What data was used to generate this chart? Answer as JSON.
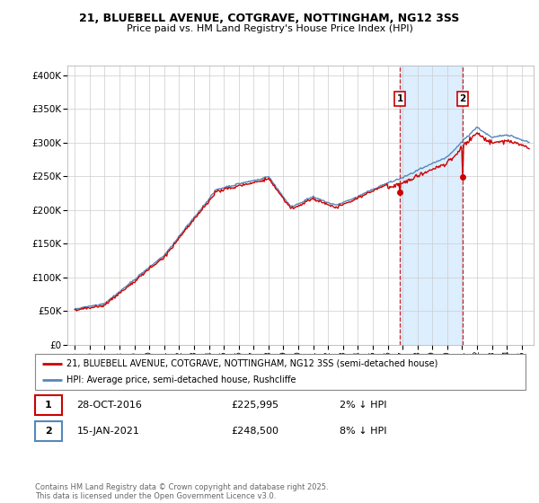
{
  "title_line1": "21, BLUEBELL AVENUE, COTGRAVE, NOTTINGHAM, NG12 3SS",
  "title_line2": "Price paid vs. HM Land Registry's House Price Index (HPI)",
  "ylabel_ticks": [
    "£0",
    "£50K",
    "£100K",
    "£150K",
    "£200K",
    "£250K",
    "£300K",
    "£350K",
    "£400K"
  ],
  "ytick_values": [
    0,
    50000,
    100000,
    150000,
    200000,
    250000,
    300000,
    350000,
    400000
  ],
  "ylim": [
    0,
    415000
  ],
  "xlim_start": 1994.5,
  "xlim_end": 2025.8,
  "xtick_years": [
    1995,
    1996,
    1997,
    1998,
    1999,
    2000,
    2001,
    2002,
    2003,
    2004,
    2005,
    2006,
    2007,
    2008,
    2009,
    2010,
    2011,
    2012,
    2013,
    2014,
    2015,
    2016,
    2017,
    2018,
    2019,
    2020,
    2021,
    2022,
    2023,
    2024,
    2025
  ],
  "hpi_color": "#5588bb",
  "price_color": "#cc0000",
  "shade_color": "#ddeeff",
  "marker1_x": 2016.82,
  "marker1_y": 225995,
  "marker2_x": 2021.04,
  "marker2_y": 248500,
  "legend_line1": "21, BLUEBELL AVENUE, COTGRAVE, NOTTINGHAM, NG12 3SS (semi-detached house)",
  "legend_line2": "HPI: Average price, semi-detached house, Rushcliffe",
  "annotation1_num": "1",
  "annotation1_date": "28-OCT-2016",
  "annotation1_price": "£225,995",
  "annotation1_hpi": "2% ↓ HPI",
  "annotation2_num": "2",
  "annotation2_date": "15-JAN-2021",
  "annotation2_price": "£248,500",
  "annotation2_hpi": "8% ↓ HPI",
  "footer": "Contains HM Land Registry data © Crown copyright and database right 2025.\nThis data is licensed under the Open Government Licence v3.0.",
  "background_color": "#ffffff",
  "grid_color": "#cccccc"
}
